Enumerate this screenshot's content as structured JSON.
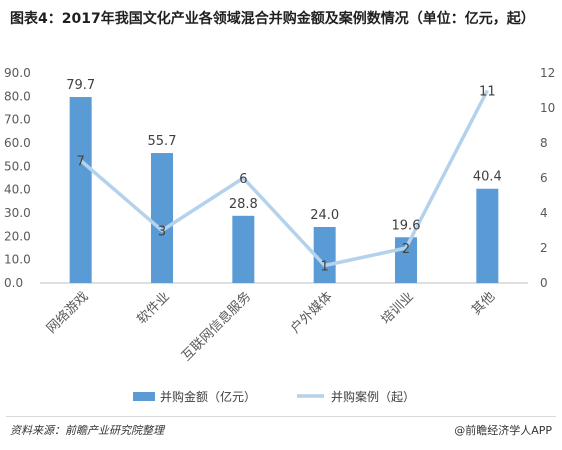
{
  "chart_data": {
    "type": "bar",
    "title": "图表4：2017年我国文化产业各领域混合并购金额及案例数情况（单位：亿元，起）",
    "categories": [
      "网络游戏",
      "软件业",
      "互联网信息服务",
      "户外媒体",
      "培训业",
      "其他"
    ],
    "series": [
      {
        "name": "并购金额（亿元）",
        "type": "bar",
        "axis": "left",
        "values": [
          79.7,
          55.7,
          28.8,
          24.0,
          19.6,
          40.4
        ]
      },
      {
        "name": "并购案例（起）",
        "type": "line",
        "axis": "right",
        "values": [
          7,
          3,
          6,
          1,
          2,
          11
        ]
      }
    ],
    "left_axis": {
      "ticks": [
        "0.0",
        "10.0",
        "20.0",
        "30.0",
        "40.0",
        "50.0",
        "60.0",
        "70.0",
        "80.0",
        "90.0"
      ],
      "ylim": [
        0,
        90
      ]
    },
    "right_axis": {
      "ticks": [
        "0",
        "2",
        "4",
        "6",
        "8",
        "10",
        "12"
      ],
      "ylim": [
        0,
        12
      ]
    },
    "bar_labels": [
      "79.7",
      "55.7",
      "28.8",
      "24.0",
      "19.6",
      "40.4"
    ],
    "line_labels": [
      "7",
      "3",
      "6",
      "1",
      "2",
      "11"
    ],
    "legend_position": "bottom",
    "grid": false,
    "colors": {
      "bar": "#5b9bd5",
      "line": "#b4d2ec"
    }
  },
  "footer": {
    "source": "资料来源：前瞻产业研究院整理",
    "brand": "@前瞻经济学人APP"
  }
}
